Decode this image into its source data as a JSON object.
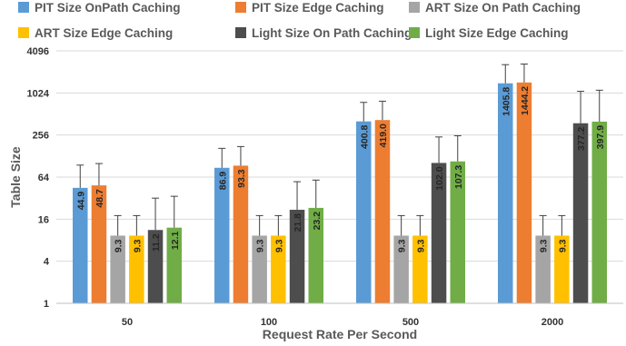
{
  "chart_data": {
    "type": "bar",
    "title": "",
    "xlabel": "Request Rate Per Second",
    "ylabel": "Table Size",
    "y_scale": "log2",
    "ylim": [
      1,
      4096
    ],
    "y_ticks": [
      1,
      4,
      16,
      64,
      256,
      1024,
      4096
    ],
    "categories": [
      "50",
      "100",
      "500",
      "2000"
    ],
    "grid": "horizontal",
    "legend_position": "top",
    "error_bars": true,
    "series": [
      {
        "name": "PIT Size OnPath Caching",
        "color": "#5b9bd5",
        "values": [
          44.9,
          86.9,
          400.8,
          1405.8
        ],
        "labels": [
          "44.9",
          "86.9",
          "400.8",
          "1405.8"
        ],
        "error_upper": [
          95,
          165,
          750,
          2600
        ]
      },
      {
        "name": "PIT Size Edge Caching",
        "color": "#ed7d31",
        "values": [
          48.7,
          93.3,
          419.0,
          1444.2
        ],
        "labels": [
          "48.7",
          "93.3",
          "419.0",
          "1444.2"
        ],
        "error_upper": [
          100,
          175,
          780,
          2650
        ]
      },
      {
        "name": "ART Size On Path Caching",
        "color": "#a5a5a5",
        "values": [
          9.3,
          9.3,
          9.3,
          9.3
        ],
        "labels": [
          "9.3",
          "9.3",
          "9.3",
          "9.3"
        ],
        "error_upper": [
          18,
          18,
          18,
          18
        ]
      },
      {
        "name": "ART Size Edge Caching",
        "color": "#ffc000",
        "values": [
          9.3,
          9.3,
          9.3,
          9.3
        ],
        "labels": [
          "9.3",
          "9.3",
          "9.3",
          "9.3"
        ],
        "error_upper": [
          18,
          18,
          18,
          18
        ]
      },
      {
        "name": "Light Size On Path Caching",
        "color": "#4d4d4d",
        "values": [
          11.2,
          21.8,
          102.0,
          377.2
        ],
        "labels": [
          "11.2",
          "21.8",
          "102.0",
          "377.2"
        ],
        "error_upper": [
          32,
          55,
          240,
          1080
        ]
      },
      {
        "name": "Light Size Edge Caching",
        "color": "#70ad47",
        "values": [
          12.1,
          23.2,
          107.3,
          397.9
        ],
        "labels": [
          "12.1",
          "23.2",
          "107.3",
          "397.9"
        ],
        "error_upper": [
          34,
          58,
          250,
          1120
        ]
      }
    ]
  }
}
